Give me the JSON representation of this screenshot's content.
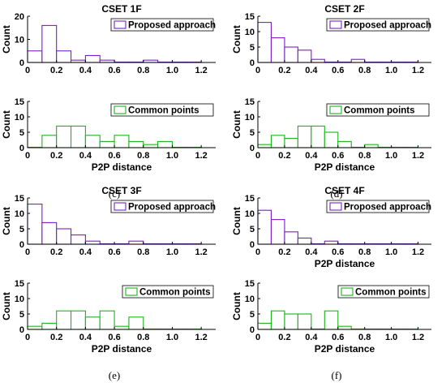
{
  "colors": {
    "proposed": "#7a1fc8",
    "common": "#1db31d",
    "axis": "#000000"
  },
  "captions": [
    "(c)",
    "(d)",
    "(e)",
    "(f)"
  ],
  "chart_data": [
    {
      "type": "bar",
      "panel": "(c)",
      "title": "CSET 1F",
      "xlabel": "",
      "ylabel": "Count",
      "series_name": "Proposed approach",
      "bins_left": [
        0,
        0.1,
        0.2,
        0.3,
        0.4,
        0.5,
        0.6,
        0.7,
        0.8,
        0.9,
        1.0,
        1.1
      ],
      "bin_width": 0.1,
      "values": [
        5,
        16,
        5,
        1,
        3,
        1,
        0,
        0,
        1,
        0,
        0,
        0
      ],
      "xlim": [
        0,
        1.3
      ],
      "ylim": [
        0,
        20
      ],
      "xticks": [
        "0",
        "0.2",
        "0.4",
        "0.6",
        "0.8",
        "1.0",
        "1.2"
      ],
      "yticks": [
        "0",
        "10",
        "20"
      ]
    },
    {
      "type": "bar",
      "panel": "(c)",
      "title": "",
      "xlabel": "P2P distance",
      "ylabel": "Count",
      "series_name": "Common points",
      "bins_left": [
        0,
        0.1,
        0.2,
        0.3,
        0.4,
        0.5,
        0.6,
        0.7,
        0.8,
        0.9,
        1.0,
        1.1
      ],
      "bin_width": 0.1,
      "values": [
        0,
        4,
        7,
        7,
        4,
        2,
        4,
        2,
        1,
        2,
        0,
        0
      ],
      "xlim": [
        0,
        1.3
      ],
      "ylim": [
        0,
        15
      ],
      "xticks": [
        "0",
        "0.2",
        "0.4",
        "0.6",
        "0.8",
        "1.0",
        "1.2"
      ],
      "yticks": [
        "0",
        "5",
        "10",
        "15"
      ]
    },
    {
      "type": "bar",
      "panel": "(d)",
      "title": "CSET 2F",
      "xlabel": "",
      "ylabel": "Count",
      "series_name": "Proposed approach",
      "bins_left": [
        0,
        0.1,
        0.2,
        0.3,
        0.4,
        0.5,
        0.6,
        0.7,
        0.8,
        0.9,
        1.0,
        1.1
      ],
      "bin_width": 0.1,
      "values": [
        13,
        8,
        5,
        4,
        1,
        0,
        0,
        1,
        0,
        0,
        0,
        0
      ],
      "xlim": [
        0,
        1.3
      ],
      "ylim": [
        0,
        15
      ],
      "xticks": [
        "0",
        "0.2",
        "0.4",
        "0.6",
        "0.8",
        "1.0",
        "1.2"
      ],
      "yticks": [
        "0",
        "5",
        "10",
        "15"
      ]
    },
    {
      "type": "bar",
      "panel": "(d)",
      "title": "",
      "xlabel": "P2P distance",
      "ylabel": "Count",
      "series_name": "Common points",
      "bins_left": [
        0,
        0.1,
        0.2,
        0.3,
        0.4,
        0.5,
        0.6,
        0.7,
        0.8,
        0.9,
        1.0,
        1.1
      ],
      "bin_width": 0.1,
      "values": [
        1,
        4,
        3,
        7,
        7,
        5,
        2,
        0,
        1,
        0,
        0,
        0
      ],
      "xlim": [
        0,
        1.3
      ],
      "ylim": [
        0,
        15
      ],
      "xticks": [
        "0",
        "0.2",
        "0.4",
        "0.6",
        "0.8",
        "1.0",
        "1.2"
      ],
      "yticks": [
        "0",
        "5",
        "10",
        "15"
      ]
    },
    {
      "type": "bar",
      "panel": "(e)",
      "title": "CSET 3F",
      "xlabel": "",
      "ylabel": "Count",
      "series_name": "Proposed approach",
      "bins_left": [
        0,
        0.1,
        0.2,
        0.3,
        0.4,
        0.5,
        0.6,
        0.7,
        0.8,
        0.9,
        1.0,
        1.1
      ],
      "bin_width": 0.1,
      "values": [
        13,
        7,
        5,
        3,
        1,
        0,
        0,
        1,
        0,
        0,
        0,
        0
      ],
      "xlim": [
        0,
        1.3
      ],
      "ylim": [
        0,
        15
      ],
      "xticks": [
        "0",
        "0.2",
        "0.4",
        "0.6",
        "0.8",
        "1.0",
        "1.2"
      ],
      "yticks": [
        "0",
        "5",
        "10",
        "15"
      ]
    },
    {
      "type": "bar",
      "panel": "(e)",
      "title": "",
      "xlabel": "P2P distance",
      "ylabel": "Count",
      "series_name": "Common points",
      "bins_left": [
        0,
        0.1,
        0.2,
        0.3,
        0.4,
        0.5,
        0.6,
        0.7,
        0.8,
        0.9,
        1.0,
        1.1
      ],
      "bin_width": 0.1,
      "values": [
        1,
        2,
        6,
        6,
        4,
        6,
        1,
        4,
        0,
        0,
        0,
        0
      ],
      "xlim": [
        0,
        1.3
      ],
      "ylim": [
        0,
        15
      ],
      "xticks": [
        "0",
        "0.2",
        "0.4",
        "0.6",
        "0.8",
        "1.0",
        "1.2"
      ],
      "yticks": [
        "0",
        "5",
        "10",
        "15"
      ]
    },
    {
      "type": "bar",
      "panel": "(f)",
      "title": "CSET 4F",
      "xlabel": "P2P distance",
      "ylabel": "Count",
      "series_name": "Proposed approach",
      "bins_left": [
        0,
        0.1,
        0.2,
        0.3,
        0.4,
        0.5,
        0.6,
        0.7,
        0.8,
        0.9,
        1.0,
        1.1
      ],
      "bin_width": 0.1,
      "values": [
        11,
        8,
        4,
        2,
        0,
        1,
        0,
        0,
        0,
        0,
        0,
        0
      ],
      "xlim": [
        0,
        1.3
      ],
      "ylim": [
        0,
        15
      ],
      "xticks": [
        "0",
        "0.2",
        "0.4",
        "0.6",
        "0.8",
        "1.0",
        "1.2"
      ],
      "yticks": [
        "0",
        "5",
        "10",
        "15"
      ]
    },
    {
      "type": "bar",
      "panel": "(f)",
      "title": "",
      "xlabel": "P2P distance",
      "ylabel": "Count",
      "series_name": "Common points",
      "bins_left": [
        0,
        0.1,
        0.2,
        0.3,
        0.4,
        0.5,
        0.6,
        0.7,
        0.8,
        0.9,
        1.0,
        1.1
      ],
      "bin_width": 0.1,
      "values": [
        2,
        6,
        5,
        5,
        0,
        6,
        1,
        0,
        0,
        0,
        0,
        0
      ],
      "xlim": [
        0,
        1.3
      ],
      "ylim": [
        0,
        15
      ],
      "xticks": [
        "0",
        "0.2",
        "0.4",
        "0.6",
        "0.8",
        "1.0",
        "1.2"
      ],
      "yticks": [
        "0",
        "5",
        "10",
        "15"
      ]
    }
  ]
}
